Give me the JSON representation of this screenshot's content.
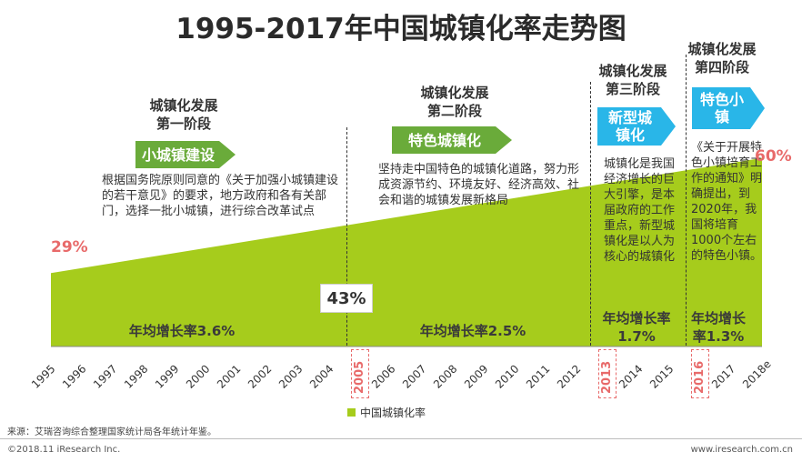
{
  "title": "1995-2017年中国城镇化率走势图",
  "stages": [
    {
      "head1": "城镇化发展",
      "head2": "第一阶段",
      "tag": "小城镇建设",
      "desc": "根据国务院原则同意的《关于加强小城镇建设的若干意见》的要求，地方政府和各有关部门，选择一批小城镇，进行综合改革试点",
      "growth": "年均增长率3.6%"
    },
    {
      "head1": "城镇化发展",
      "head2": "第二阶段",
      "tag": "特色城镇化",
      "desc": "坚持走中国特色的城镇化道路，努力形成资源节约、环境友好、经济高效、社会和谐的城镇发展新格局",
      "growth": "年均增长率2.5%"
    },
    {
      "head1": "城镇化发展",
      "head2": "第三阶段",
      "tag_line1": "新型城",
      "tag_line2": "镇化",
      "desc": "城镇化是我国经济增长的巨大引擎，是本届政府的工作重点，新型城镇化是以人为核心的城镇化",
      "growth_line1": "年均增长率",
      "growth_line2": "1.7%"
    },
    {
      "head1": "城镇化发展",
      "head2": "第四阶段",
      "tag_line1": "特色小",
      "tag_line2": "镇",
      "desc": "《关于开展特色小镇培育工作的通知》明确提出，到2020年，我国将培育1000个左右的特色小镇。",
      "growth_line1": "年均增长",
      "growth_line2": "率1.3%"
    }
  ],
  "labels": {
    "start": "29%",
    "mid": "43%",
    "end": "60%"
  },
  "legend": "中国城镇化率",
  "source": "来源：艾瑞咨询综合整理国家统计局各年统计年鉴。",
  "copyright": "©2018.11 iResearch Inc.",
  "website": "www.iresearch.com.cn",
  "colors": {
    "area": "#a6cc1c",
    "tag_green": "#6aab3a",
    "tag_blue": "#29b6e8",
    "highlight": "#e86a6a"
  },
  "chart_data": {
    "type": "area",
    "title": "1995-2017年中国城镇化率走势图",
    "x": [
      "1995",
      "1996",
      "1997",
      "1998",
      "1999",
      "2000",
      "2001",
      "2002",
      "2003",
      "2004",
      "2005",
      "2006",
      "2007",
      "2008",
      "2009",
      "2010",
      "2011",
      "2012",
      "2013",
      "2014",
      "2015",
      "2016",
      "2017",
      "2018e"
    ],
    "series": [
      {
        "name": "中国城镇化率",
        "labeled_values": {
          "1995": 29,
          "2005": 43,
          "2018e": 60
        }
      }
    ],
    "value_labels": [
      "29%",
      "43%",
      "60%"
    ],
    "highlighted_ticks": [
      "2005",
      "2013",
      "2016"
    ],
    "stage_boundaries": [
      "2005",
      "2013",
      "2016"
    ],
    "ylabel": "",
    "xlabel": ""
  }
}
